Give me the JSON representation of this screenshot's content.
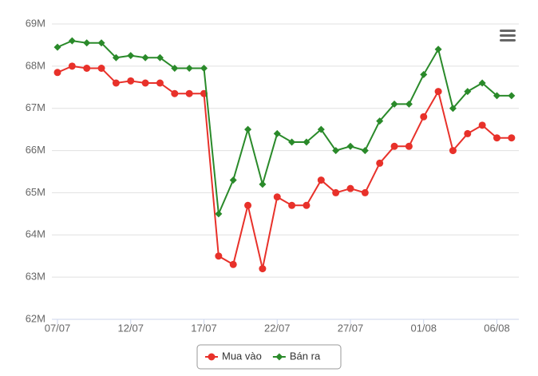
{
  "chart_data": {
    "type": "line",
    "categories": [
      "07/07",
      null,
      null,
      null,
      null,
      "12/07",
      null,
      null,
      null,
      null,
      "17/07",
      null,
      null,
      null,
      null,
      "22/07",
      null,
      null,
      null,
      null,
      "27/07",
      null,
      null,
      null,
      null,
      "01/08",
      null,
      null,
      null,
      null,
      "06/08",
      null
    ],
    "series": [
      {
        "name": "Mua vào",
        "color": "#e8312a",
        "marker": "circle",
        "values": [
          67850000,
          68000000,
          67950000,
          67950000,
          67600000,
          67650000,
          67600000,
          67600000,
          67350000,
          67350000,
          67350000,
          63500000,
          63300000,
          64700000,
          63200000,
          64900000,
          64700000,
          64700000,
          65300000,
          65000000,
          65100000,
          65000000,
          65700000,
          66100000,
          66100000,
          66800000,
          67400000,
          66000000,
          66400000,
          66600000,
          66300000,
          66300000
        ]
      },
      {
        "name": "Bán ra",
        "color": "#2a8a2a",
        "marker": "diamond",
        "values": [
          68450000,
          68600000,
          68550000,
          68550000,
          68200000,
          68250000,
          68200000,
          68200000,
          67950000,
          67950000,
          67950000,
          64500000,
          65300000,
          66500000,
          65200000,
          66400000,
          66200000,
          66200000,
          66500000,
          66000000,
          66100000,
          66000000,
          66700000,
          67100000,
          67100000,
          67800000,
          68400000,
          67000000,
          67400000,
          67600000,
          67300000,
          67300000
        ]
      }
    ],
    "ylim": [
      62000000,
      69000000
    ],
    "yticks": [
      {
        "value": 62000000,
        "label": "62M"
      },
      {
        "value": 63000000,
        "label": "63M"
      },
      {
        "value": 64000000,
        "label": "64M"
      },
      {
        "value": 65000000,
        "label": "65M"
      },
      {
        "value": 66000000,
        "label": "66M"
      },
      {
        "value": 67000000,
        "label": "67M"
      },
      {
        "value": 68000000,
        "label": "68M"
      },
      {
        "value": 69000000,
        "label": "69M"
      }
    ],
    "grid": true,
    "legend": "bottom"
  }
}
